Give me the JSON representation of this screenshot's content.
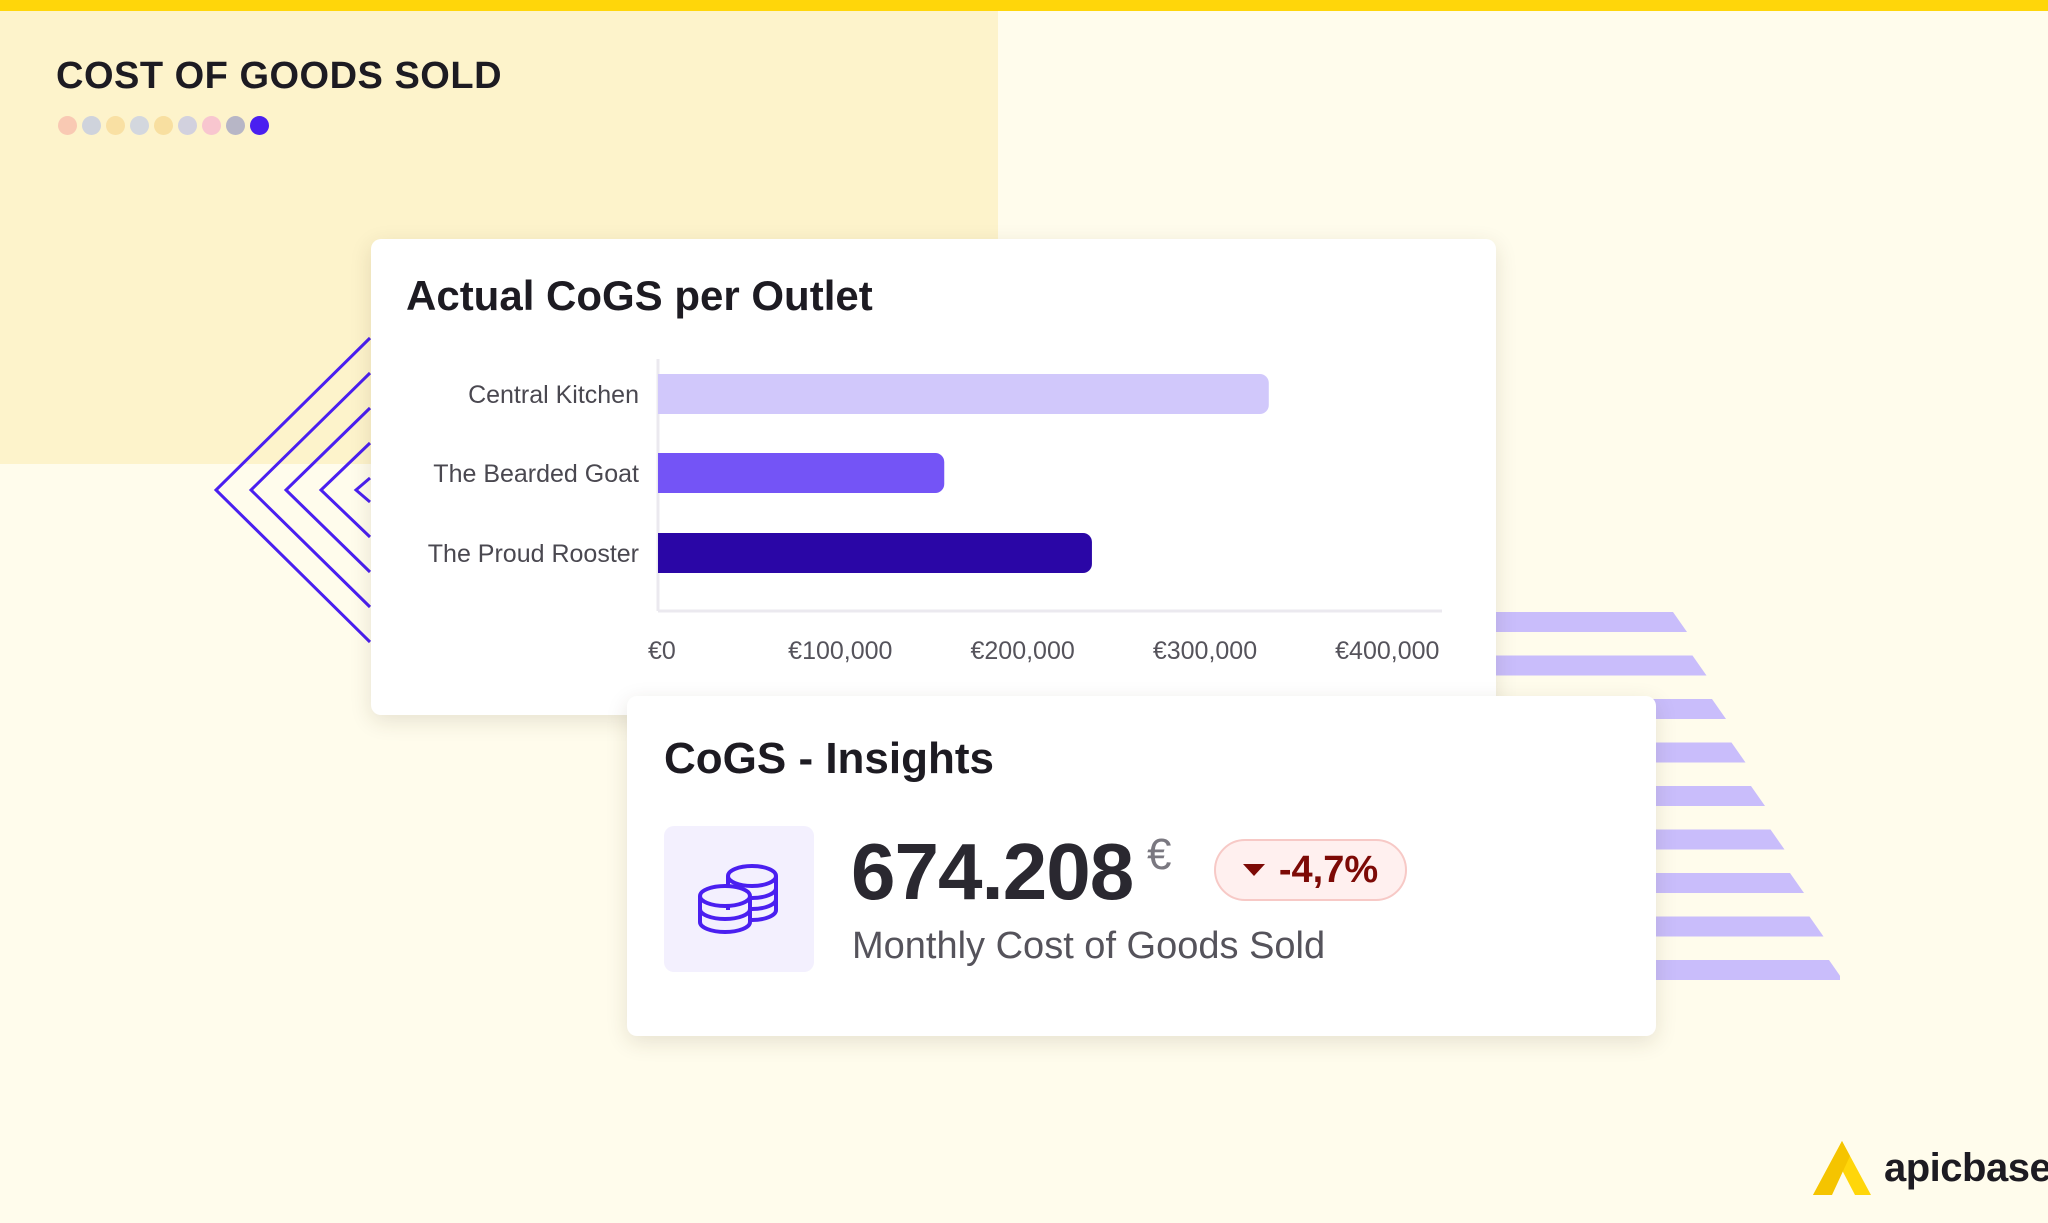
{
  "page": {
    "title": "COST OF GOODS SOLD",
    "dot_colors": [
      "#f9c9b3",
      "#cfd3dc",
      "#f9e0a3",
      "#d3d7de",
      "#f8dfa0",
      "#d2d1de",
      "#f8c6cf",
      "#b7b6c6",
      "#4a1ff0"
    ]
  },
  "chart_card": {
    "title": "Actual CoGS per Outlet"
  },
  "chart_data": {
    "type": "bar",
    "orientation": "horizontal",
    "title": "Actual CoGS per Outlet",
    "categories": [
      "Central Kitchen",
      "The Bearded Goat",
      "The Proud Rooster"
    ],
    "values": [
      335000,
      157000,
      238000
    ],
    "colors": [
      "#d1c8fb",
      "#7454f6",
      "#2a06a6"
    ],
    "xlim": [
      0,
      430000
    ],
    "xticks": [
      0,
      100000,
      200000,
      300000,
      400000
    ],
    "xtick_labels": [
      "€0",
      "€100,000",
      "€200,000",
      "€300,000",
      "€400,000"
    ],
    "xlabel": "",
    "ylabel": "",
    "grid": false,
    "legend": "none"
  },
  "insights": {
    "title": "CoGS - Insights",
    "value": "674.208",
    "unit": "€",
    "change": "-4,7%",
    "change_direction": "down",
    "label": "Monthly Cost of Goods Sold",
    "icon": "coins-icon"
  },
  "brand": {
    "name": "apicbase",
    "icon": "apicbase-logo-icon"
  },
  "colors": {
    "accent": "#4a1ff0",
    "stripe": "#ffd60a",
    "background": "#fffcec",
    "panel": "#fdf3cb",
    "deco_stripes": "#c9bdfb",
    "badge_text": "#7d0a06"
  }
}
